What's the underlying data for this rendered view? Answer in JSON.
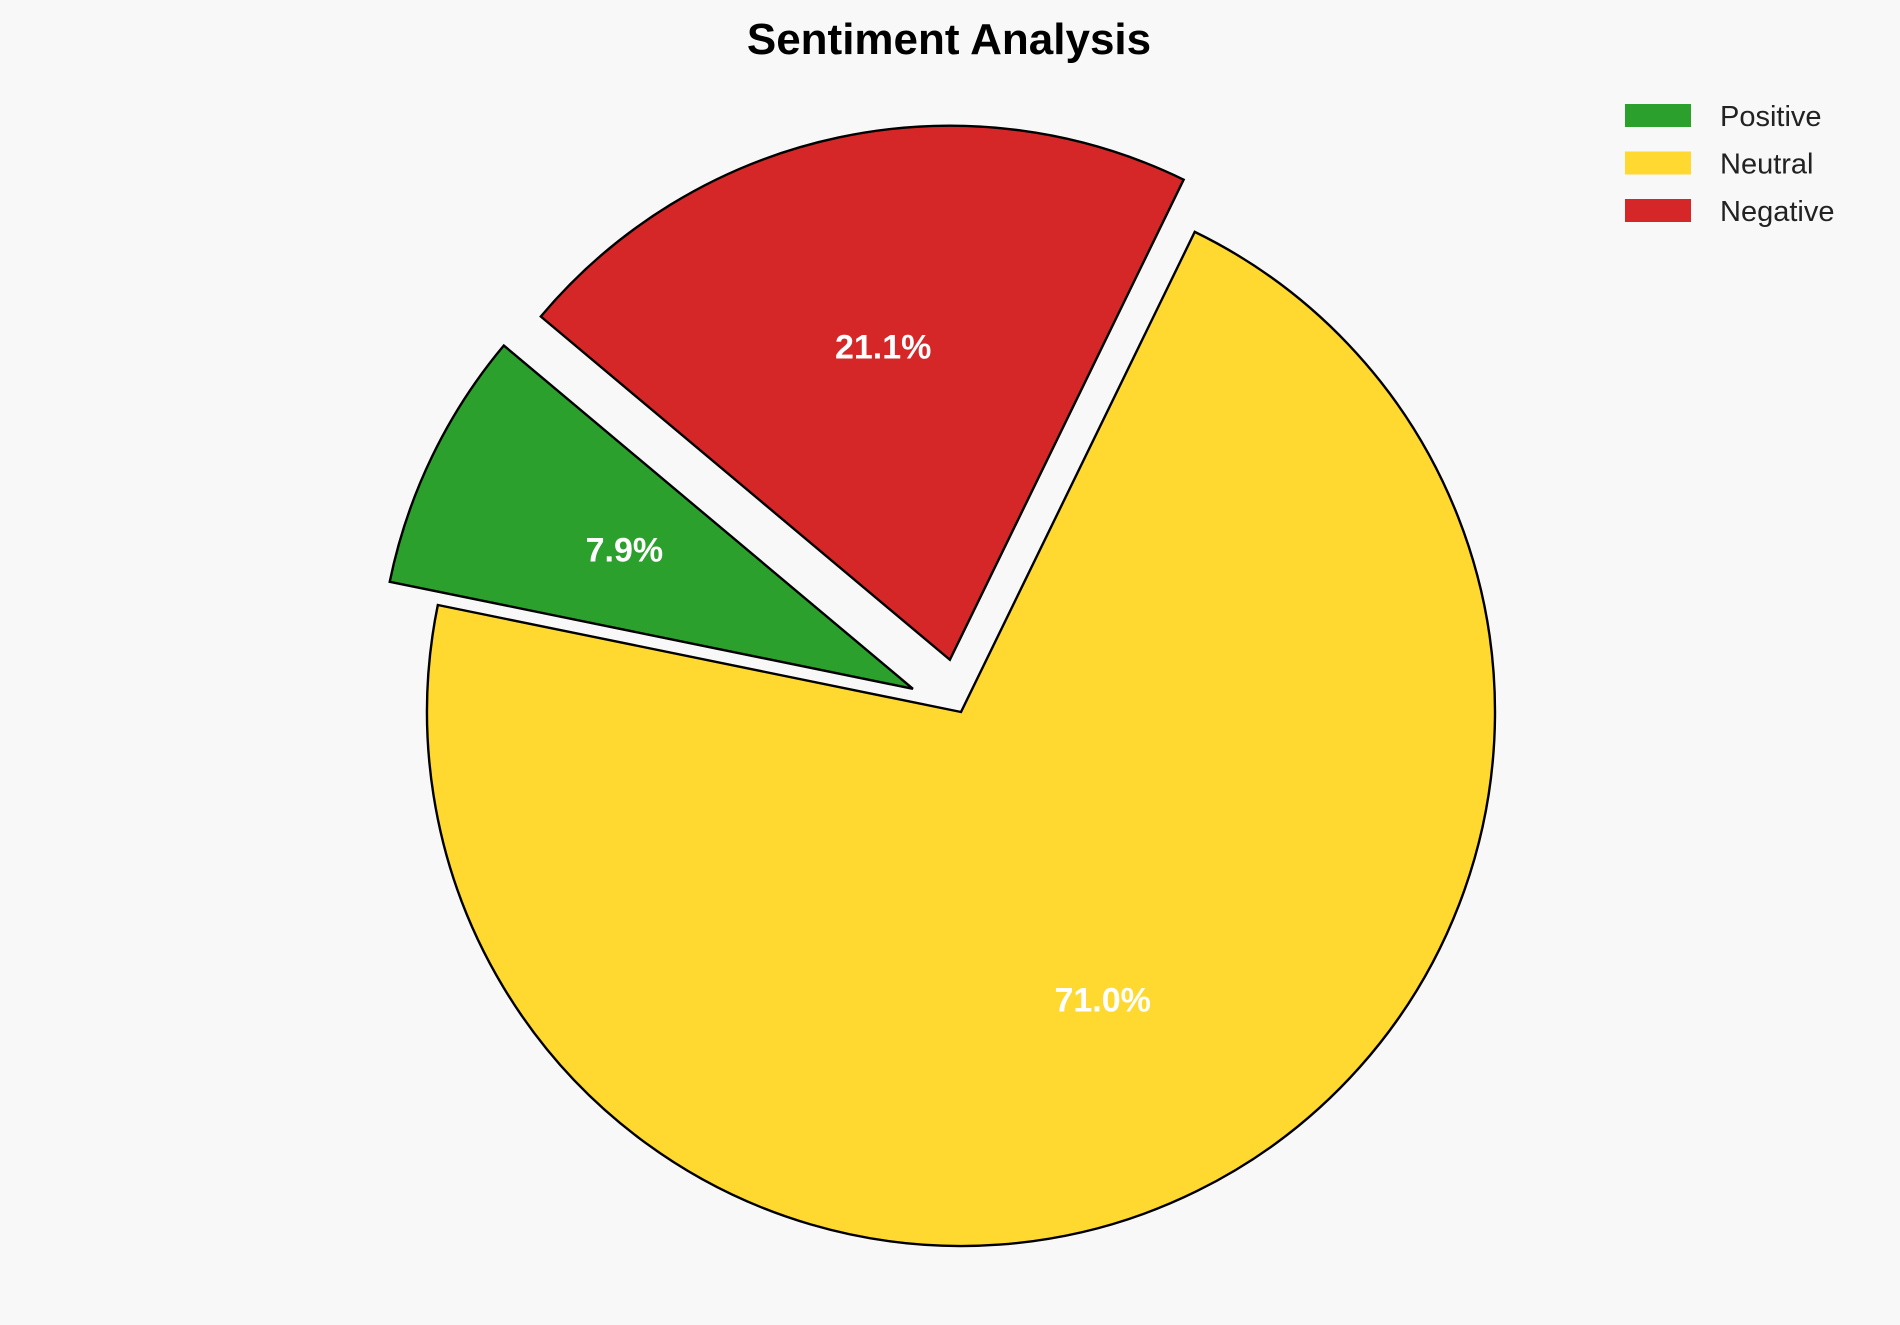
{
  "chart_data": {
    "type": "pie",
    "title": "Sentiment Analysis",
    "categories": [
      "Positive",
      "Neutral",
      "Negative"
    ],
    "values": [
      7.9,
      71.0,
      21.1
    ],
    "labels": [
      "7.9%",
      "71.0%",
      "21.1%"
    ],
    "colors": [
      "#2ca02c",
      "#ffd92f",
      "#d62728"
    ],
    "explode": [
      0.1,
      0,
      0.1
    ],
    "start_angle_deg": 140,
    "direction": "counterclockwise",
    "edge_color": "#000000",
    "legend": {
      "placement": "top-right",
      "entries": [
        "Positive",
        "Neutral",
        "Negative"
      ]
    }
  }
}
